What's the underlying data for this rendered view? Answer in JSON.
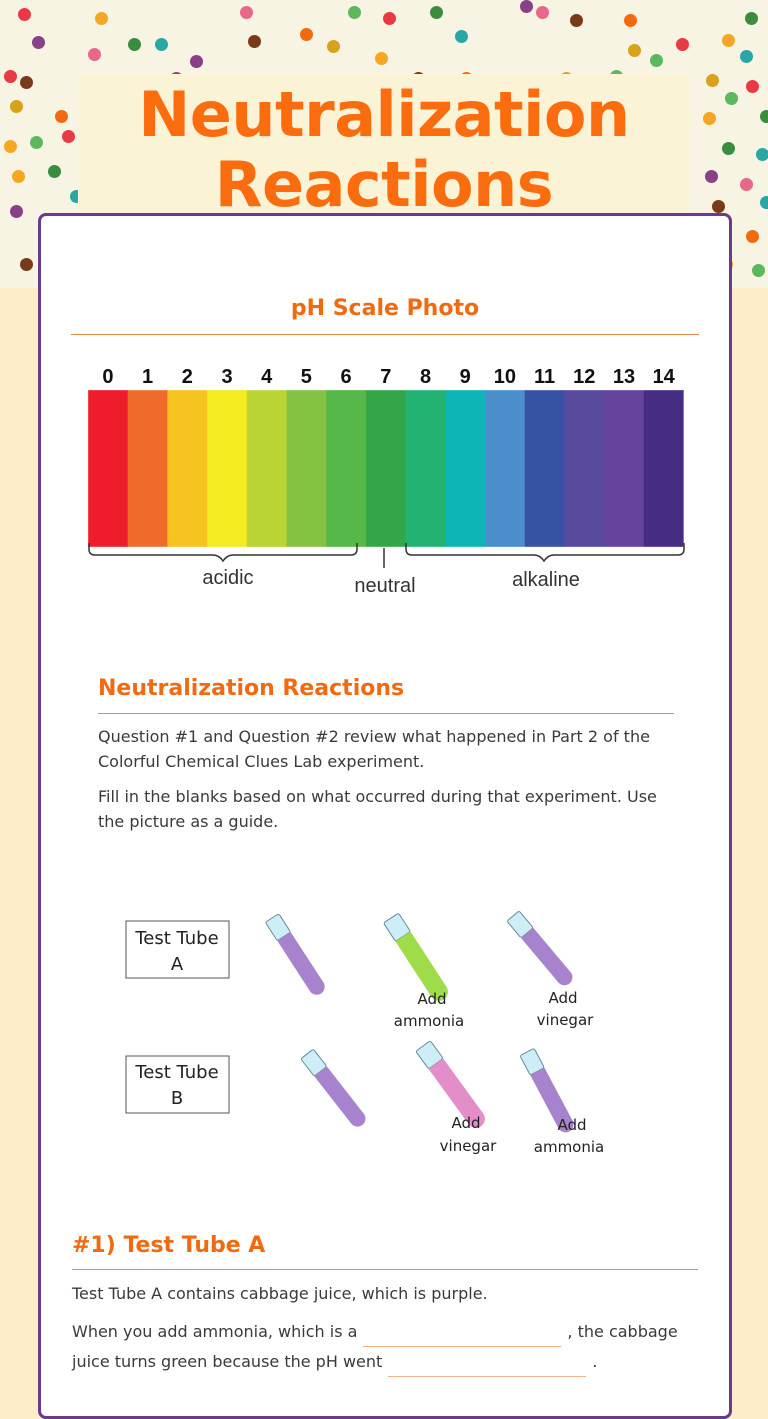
{
  "page_title": "Neutralization Reactions",
  "ph_section": {
    "title": "pH Scale Photo",
    "scale_numbers": [
      "0",
      "1",
      "2",
      "3",
      "4",
      "5",
      "6",
      "7",
      "8",
      "9",
      "10",
      "11",
      "12",
      "13",
      "14"
    ],
    "scale_colors": [
      "#ef1c2c",
      "#f06a2b",
      "#f7c320",
      "#f4eb21",
      "#bad434",
      "#85c244",
      "#56b848",
      "#34a64a",
      "#22b372",
      "#0db5b6",
      "#4a8fcc",
      "#3653a3",
      "#5a4a9e",
      "#64449c",
      "#472c83"
    ],
    "label_acidic": "acidic",
    "label_neutral": "neutral",
    "label_alkaline": "alkaline"
  },
  "neutralization": {
    "title": "Neutralization Reactions",
    "paragraph1": "Question #1 and Question #2 review what happened in Part 2 of the Colorful Chemical Clues Lab experiment.",
    "paragraph2": "Fill in the blanks based on what occurred during that experiment. Use the picture as a guide."
  },
  "tubes_figure": {
    "label_a_line1": "Test Tube",
    "label_a_line2": "A",
    "label_b_line1": "Test Tube",
    "label_b_line2": "B",
    "a_step1_line1": "Add",
    "a_step1_line2": "ammonia",
    "a_step2_line1": "Add",
    "a_step2_line2": "vinegar",
    "b_step1_line1": "Add",
    "b_step1_line2": "vinegar",
    "b_step2_line1": "Add",
    "b_step2_line2": "ammonia",
    "color_purple": "#a783cd",
    "color_green": "#9edc4a",
    "color_pink": "#e38ec8",
    "color_top": "#cdeef7"
  },
  "question1": {
    "title": "#1) Test Tube A",
    "line1": "Test Tube A contains cabbage juice, which is purple.",
    "part1": "When you add ammonia, which is a",
    "part2": ", the cabbage juice turns green because the pH went",
    "part3": "."
  }
}
